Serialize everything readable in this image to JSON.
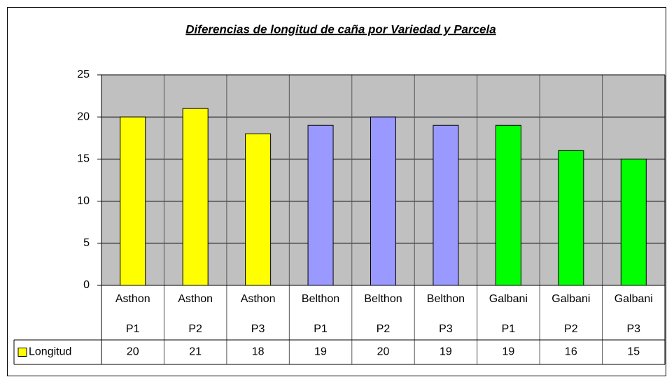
{
  "chart_data": {
    "type": "bar",
    "title": "Diferencias de longitud de caña por Variedad y Parcela",
    "categories": [
      "Asthon P1",
      "Asthon P2",
      "Asthon P3",
      "Belthon P1",
      "Belthon P2",
      "Belthon P3",
      "Galbani P1",
      "Galbani P2",
      "Galbani P3"
    ],
    "series": [
      {
        "name": "Longitud",
        "color": "#ffff00",
        "colors": [
          "#ffff00",
          "#ffff00",
          "#ffff00",
          "#9999ff",
          "#9999ff",
          "#9999ff",
          "#00ff00",
          "#00ff00",
          "#00ff00"
        ],
        "values": [
          20,
          21,
          18,
          19,
          20,
          19,
          19,
          16,
          15
        ]
      }
    ],
    "ylim": [
      0,
      25
    ],
    "yticks": [
      0,
      5,
      10,
      15,
      20,
      25
    ],
    "grid": true,
    "data_table": true
  }
}
